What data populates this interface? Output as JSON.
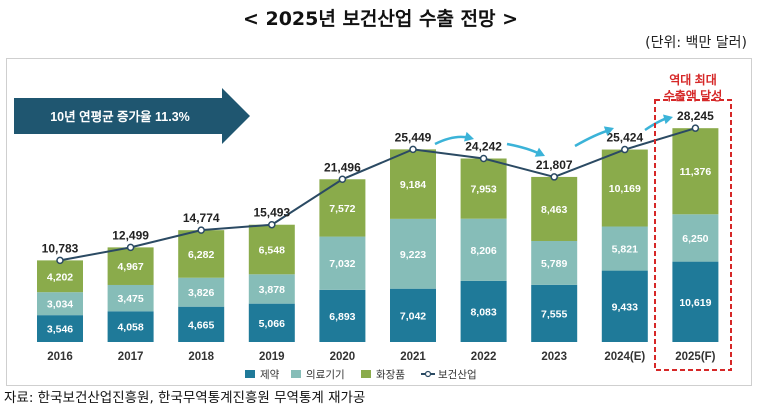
{
  "page": {
    "title": "< 2025년 보건산업 수출 전망 >",
    "unit": "(단위: 백만 달러)",
    "source": "자료: 한국보건산업진흥원, 한국무역통계진흥원 무역통계 재가공",
    "growth_banner": "10년 연평균 증가율 11.3%",
    "record_note_line1": "역대 최대",
    "record_note_line2": "수출액 달성"
  },
  "colors": {
    "pharma": "#1f7a99",
    "medical": "#86bdb8",
    "cosmetics": "#8aab4b",
    "line": "#2b4a63",
    "arrow": "#1f5670",
    "growth_arrow": "#3bb3d8",
    "record": "#d62828"
  },
  "chart_data": {
    "type": "bar",
    "stacked": true,
    "title": "2025년 보건산업 수출 전망",
    "ylabel": "백만 달러",
    "xlabel": "",
    "ylim": [
      0,
      30000
    ],
    "categories": [
      "2016",
      "2017",
      "2018",
      "2019",
      "2020",
      "2021",
      "2022",
      "2023",
      "2024(E)",
      "2025(F)"
    ],
    "series": [
      {
        "name": "제약",
        "values": [
          3546,
          4058,
          4665,
          5066,
          6893,
          7042,
          8083,
          7555,
          9433,
          10619
        ]
      },
      {
        "name": "의료기기",
        "values": [
          3034,
          3475,
          3826,
          3878,
          7032,
          9223,
          8206,
          5789,
          5821,
          6250
        ]
      },
      {
        "name": "화장품",
        "values": [
          4202,
          4967,
          6282,
          6548,
          7572,
          9184,
          7953,
          8463,
          10169,
          11376
        ]
      }
    ],
    "line_series": {
      "name": "보건산업",
      "values": [
        10783,
        12499,
        14774,
        15493,
        21496,
        25449,
        24242,
        21807,
        25424,
        28245
      ],
      "labels": [
        "10,783",
        "12,499",
        "14,774",
        "15,493",
        "21,496",
        "25,449",
        "24,242",
        "21,807",
        "25,424",
        "28,245"
      ]
    },
    "segment_labels": [
      [
        "3,546",
        "3,034",
        "4,202"
      ],
      [
        "4,058",
        "3,475",
        "4,967"
      ],
      [
        "4,665",
        "3,826",
        "6,282"
      ],
      [
        "5,066",
        "3,878",
        "6,548"
      ],
      [
        "6,893",
        "7,032",
        "7,572"
      ],
      [
        "7,042",
        "9,223",
        "9,184"
      ],
      [
        "8,083",
        "8,206",
        "7,953"
      ],
      [
        "7,555",
        "5,789",
        "8,463"
      ],
      [
        "9,433",
        "5,821",
        "10,169"
      ],
      [
        "10,619",
        "6,250",
        "11,376"
      ]
    ],
    "legend": [
      "제약",
      "의료기기",
      "화장품",
      "보건산업"
    ],
    "legend_position": "bottom-center",
    "highlight_category": "2025(F)"
  }
}
